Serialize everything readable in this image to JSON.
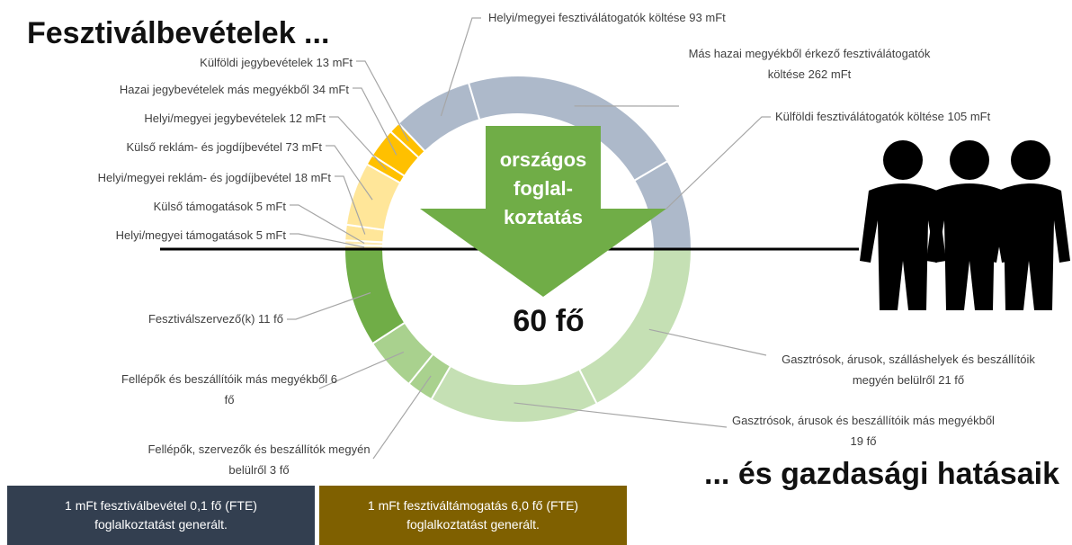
{
  "title": "Fesztiválbevételek ...",
  "subtitle": "... és gazdasági hatásaik",
  "arrow_text": [
    "országos",
    "foglal-",
    "koztatás"
  ],
  "center_label": "60 fő",
  "notes": [
    "1 mFt fesztiválbevétel 0,1 fő (FTE) foglalkoztatást generált.",
    "1 mFt fesztiváltámogatás 6,0 fő (FTE) foglalkoztatást generált."
  ],
  "chart_data": [
    {
      "type": "pie",
      "categories": [
        "Helyi/megyei támogatások",
        "Külső támogatások",
        "Helyi/megyei reklám- és jogdíjbevétel",
        "Külső reklám- és jogdíjbevétel",
        "Helyi/megyei jegybevételek",
        "Hazai jegybevételek más megyékből",
        "Külföldi jegybevételek",
        "Helyi/megyei fesztiválátogatók költése",
        "Más hazai megyékből érkező fesztiválátogatók költése",
        "Külföldi fesztiválátogatók költése"
      ],
      "values": [
        5,
        5,
        18,
        73,
        12,
        34,
        13,
        93,
        262,
        105
      ],
      "value_labels": [
        "5 mFt",
        "5 mFt",
        "18 mFt",
        "73 mFt",
        "12 mFt",
        "34 mFt",
        "13 mFt",
        "93 mFt",
        "262 mFt",
        "105 mFt"
      ],
      "colors": [
        "#fde9b0",
        "#fde9b0",
        "#ffe699",
        "#ffe699",
        "#ffc000",
        "#ffc000",
        "#ffc000",
        "#adb9ca",
        "#adb9ca",
        "#adb9ca"
      ]
    },
    {
      "type": "pie",
      "categories": [
        "Gasztrósok, árusok, szálláshelyek és beszállítóik megyén belülről",
        "Gasztrósok, árusok és beszállítóik más megyékből",
        "Fellépők, szervezők és beszállítók megyén belülről",
        "Fellépők és beszállítóik más megyékből",
        "Fesztiválszervező(k)"
      ],
      "values": [
        21,
        19,
        3,
        6,
        11
      ],
      "value_labels": [
        "21 fő",
        "19 fő",
        "3 fő",
        "6 fő",
        "11 fő"
      ],
      "colors": [
        "#c5e0b4",
        "#c5e0b4",
        "#a9d18e",
        "#a9d18e",
        "#70ad47"
      ]
    }
  ]
}
